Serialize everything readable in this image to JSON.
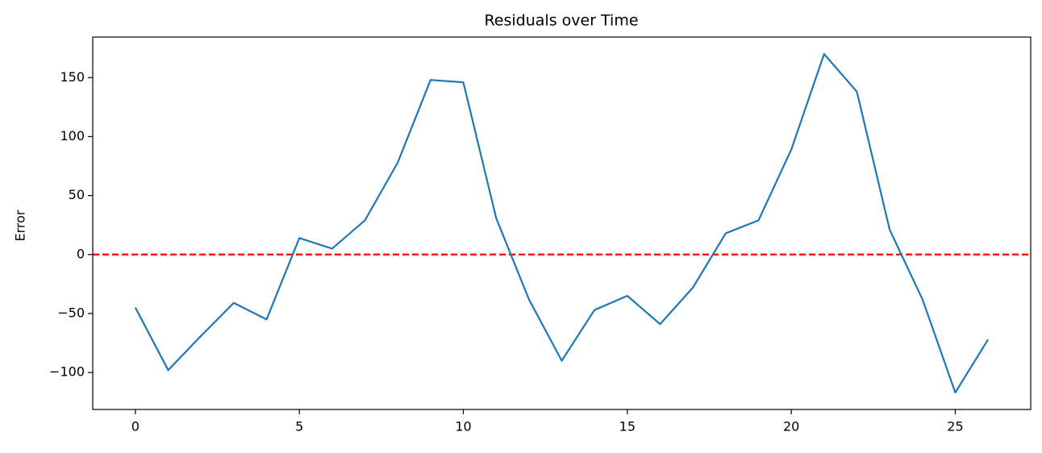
{
  "chart_data": {
    "type": "line",
    "title": "Residuals over Time",
    "y_label": "Error",
    "x": [
      0,
      1,
      2,
      3,
      4,
      5,
      6,
      7,
      8,
      9,
      10,
      11,
      12,
      13,
      14,
      15,
      16,
      17,
      18,
      19,
      20,
      21,
      22,
      23,
      24,
      25,
      26
    ],
    "series": [
      {
        "color": "#1f77b4",
        "values": [
          -45,
          -98,
          -69,
          -41,
          -55,
          14,
          5,
          29,
          78,
          148,
          146,
          31,
          -38,
          -90,
          -47,
          -35,
          -59,
          -28,
          18,
          29,
          89,
          170,
          138,
          21,
          -38,
          -117,
          -72
        ]
      }
    ],
    "xlim": [
      -1.3,
      27.3
    ],
    "xticks": [
      0,
      5,
      10,
      15,
      20,
      25
    ],
    "ylim": [
      -131.35,
      184.35
    ],
    "yticks": [
      {
        "value": -100,
        "label": "−100"
      },
      {
        "value": -50,
        "label": "−50"
      },
      0,
      50,
      100,
      150
    ],
    "reference_line": {
      "value": 0,
      "color": "#ff0000",
      "style": "dashed"
    },
    "grid": false
  }
}
